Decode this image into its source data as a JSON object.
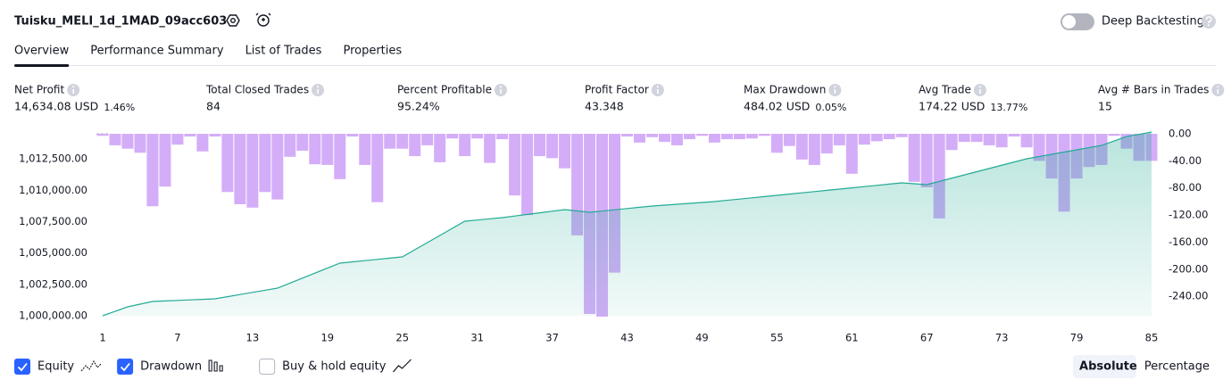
{
  "header": {
    "title": "Tuisku_MELI_1d_1MAD_09acc603",
    "deep_backtesting": "Deep Backtesting",
    "deep_backtesting_on": false
  },
  "tabs": [
    "Overview",
    "Performance Summary",
    "List of Trades",
    "Properties"
  ],
  "active_tab": 0,
  "metrics": [
    {
      "label": "Net Profit",
      "value": "14,634.08 USD",
      "extra": "1.46%",
      "tone": "positive"
    },
    {
      "label": "Total Closed Trades",
      "value": "84",
      "tone": "neutral"
    },
    {
      "label": "Percent Profitable",
      "value": "95.24%",
      "tone": "positive"
    },
    {
      "label": "Profit Factor",
      "value": "43.348",
      "tone": "positive"
    },
    {
      "label": "Max Drawdown",
      "value": "484.02 USD",
      "extra": "0.05%",
      "tone": "negative"
    },
    {
      "label": "Avg Trade",
      "value": "174.22 USD",
      "extra": "13.77%",
      "tone": "positive"
    },
    {
      "label": "Avg # Bars in Trades",
      "value": "15",
      "tone": "neutral"
    }
  ],
  "chart_data": {
    "type": "combo",
    "x": [
      1,
      2,
      3,
      4,
      5,
      6,
      7,
      8,
      9,
      10,
      11,
      12,
      13,
      14,
      15,
      16,
      17,
      18,
      19,
      20,
      21,
      22,
      23,
      24,
      25,
      26,
      27,
      28,
      29,
      30,
      31,
      32,
      33,
      34,
      35,
      36,
      37,
      38,
      39,
      40,
      41,
      42,
      43,
      44,
      45,
      46,
      47,
      48,
      49,
      50,
      51,
      52,
      53,
      54,
      55,
      56,
      57,
      58,
      59,
      60,
      61,
      62,
      63,
      64,
      65,
      66,
      67,
      68,
      69,
      70,
      71,
      72,
      73,
      74,
      75,
      76,
      77,
      78,
      79,
      80,
      81,
      82,
      83,
      84,
      85
    ],
    "xlim": [
      1,
      85
    ],
    "xticks": [
      1,
      7,
      13,
      19,
      25,
      31,
      37,
      43,
      49,
      55,
      61,
      67,
      73,
      79,
      85
    ],
    "ylim": [
      1000000,
      1014500
    ],
    "yticks": [
      {
        "value": 1000000,
        "label": "1,000,000.00"
      },
      {
        "value": 1002500,
        "label": "1,002,500.00"
      },
      {
        "value": 1005000,
        "label": "1,005,000.00"
      },
      {
        "value": 1007500,
        "label": "1,007,500.00"
      },
      {
        "value": 1010000,
        "label": "1,010,000.00"
      },
      {
        "value": 1012500,
        "label": "1,012,500.00"
      }
    ],
    "y2lim": [
      -270,
      0
    ],
    "y2ticks": [
      {
        "value": 0,
        "label": "0.00"
      },
      {
        "value": -40,
        "label": "-40.00"
      },
      {
        "value": -80,
        "label": "-80.00"
      },
      {
        "value": -120,
        "label": "-120.00"
      },
      {
        "value": -160,
        "label": "-160.00"
      },
      {
        "value": -200,
        "label": "-200.00"
      },
      {
        "value": -240,
        "label": "-240.00"
      }
    ],
    "series": [
      {
        "name": "Equity",
        "type": "area",
        "color": "#22ab94",
        "checked": true,
        "values": [
          1000000,
          1000355,
          1000711,
          1000924,
          1001137,
          1001180,
          1001222,
          1001265,
          1001307,
          1001350,
          1001521,
          1001691,
          1001862,
          1002032,
          1002203,
          1002601,
          1002999,
          1003398,
          1003796,
          1004194,
          1004293,
          1004393,
          1004492,
          1004592,
          1004691,
          1005260,
          1005829,
          1006397,
          1006966,
          1007534,
          1007629,
          1007724,
          1007819,
          1007947,
          1008075,
          1008202,
          1008330,
          1008458,
          1008352,
          1008245,
          1008345,
          1008444,
          1008544,
          1008643,
          1008743,
          1008814,
          1008885,
          1008956,
          1009027,
          1009098,
          1009198,
          1009297,
          1009397,
          1009496,
          1009596,
          1009695,
          1009795,
          1009894,
          1009994,
          1010093,
          1010192,
          1010292,
          1010391,
          1010491,
          1010590,
          1010520,
          1010449,
          1010707,
          1010964,
          1011222,
          1011480,
          1011737,
          1011995,
          1012252,
          1012510,
          1012688,
          1012865,
          1013043,
          1013220,
          1013398,
          1013575,
          1013931,
          1014287,
          1014461,
          1014634.08
        ]
      },
      {
        "name": "Drawdown",
        "type": "bar",
        "axis": "y2",
        "color": "#d4adf9",
        "checked": true,
        "values": [
          -3,
          -17,
          -22,
          -28,
          -107,
          -78,
          -16,
          -4,
          -26,
          -4,
          -86,
          -104,
          -109,
          -86,
          -97,
          -34,
          -25,
          -45,
          -46,
          -67,
          -4,
          -46,
          -101,
          -22,
          -22,
          -33,
          -17,
          -42,
          -7,
          -33,
          -7,
          -43,
          -8,
          -91,
          -120,
          -33,
          -36,
          -51,
          -150,
          -266,
          -270,
          -205,
          -4,
          -13,
          -5,
          -12,
          -17,
          -8,
          -3,
          -13,
          -8,
          -8,
          -7,
          -3,
          -28,
          -18,
          -38,
          -46,
          -29,
          -17,
          -59,
          -16,
          -11,
          -8,
          -5,
          -71,
          -79,
          -125,
          -24,
          -12,
          -12,
          -17,
          -20,
          -4,
          -20,
          -40,
          -66,
          -115,
          -66,
          -49,
          -46,
          -3,
          -22,
          -40,
          -40
        ]
      }
    ]
  },
  "buy_hold": {
    "label": "Buy & hold equity",
    "checked": false
  },
  "scale_buttons": [
    "Absolute",
    "Percentage"
  ],
  "active_scale": 0
}
